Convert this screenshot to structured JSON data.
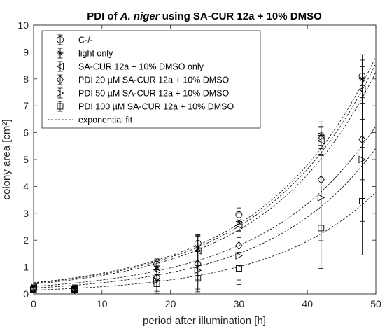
{
  "chart_data": {
    "type": "scatter",
    "title": {
      "prefix": "PDI of ",
      "italic": "A. niger",
      "suffix": " using SA-CUR 12a + 10% DMSO"
    },
    "xlabel": "period after illumination [h]",
    "ylabel": "colony area [cm²]",
    "xlim": [
      0,
      50
    ],
    "ylim": [
      0,
      10
    ],
    "xticks": [
      0,
      10,
      20,
      30,
      40,
      50
    ],
    "yticks": [
      0,
      1,
      2,
      3,
      4,
      5,
      6,
      7,
      8,
      9,
      10
    ],
    "grid": false,
    "legend_position": "top-left",
    "fit_label": "exponential fit",
    "series": [
      {
        "name": "C-/-",
        "marker": "circle",
        "x": [
          0,
          6,
          18,
          24,
          30,
          42,
          48
        ],
        "y": [
          0.22,
          0.2,
          1.1,
          1.88,
          2.95,
          5.88,
          8.1
        ],
        "err": [
          0.12,
          0.1,
          0.2,
          0.3,
          0.25,
          0.35,
          0.35
        ],
        "fit": {
          "a": 0.42,
          "b": 0.0609
        }
      },
      {
        "name": "light only",
        "marker": "asterisk",
        "x": [
          0,
          6,
          18,
          24,
          30,
          42,
          48
        ],
        "y": [
          0.28,
          0.18,
          1.0,
          1.7,
          2.7,
          5.9,
          8.0
        ],
        "err": [
          0.12,
          0.1,
          0.3,
          0.5,
          0.35,
          0.5,
          0.9
        ],
        "fit": {
          "a": 0.4,
          "b": 0.0613
        }
      },
      {
        "name": "SA-CUR 12a + 10% DMSO only",
        "marker": "triangle-left",
        "x": [
          0,
          6,
          18,
          24,
          30,
          42,
          48
        ],
        "y": [
          0.25,
          0.22,
          0.9,
          1.6,
          2.55,
          5.7,
          7.6
        ],
        "err": [
          0.15,
          0.12,
          0.4,
          0.55,
          0.45,
          0.5,
          1.1
        ],
        "fit": {
          "a": 0.37,
          "b": 0.0621
        }
      },
      {
        "name": "PDI 20 µM SA-CUR 12a + 10% DMSO",
        "marker": "diamond",
        "x": [
          0,
          6,
          18,
          24,
          30,
          42,
          48
        ],
        "y": [
          0.2,
          0.16,
          0.62,
          1.12,
          1.8,
          4.25,
          5.75
        ],
        "err": [
          0.12,
          0.1,
          0.4,
          0.6,
          0.8,
          0.9,
          1.5
        ],
        "fit": {
          "a": 0.28,
          "b": 0.0621
        }
      },
      {
        "name": "PDI 50 µM SA-CUR 12a + 10% DMSO",
        "marker": "triangle-right",
        "x": [
          0,
          6,
          18,
          24,
          30,
          42,
          48
        ],
        "y": [
          0.18,
          0.17,
          0.5,
          0.88,
          1.42,
          3.58,
          5.0
        ],
        "err": [
          0.12,
          0.1,
          0.4,
          0.7,
          0.9,
          1.6,
          2.3
        ],
        "fit": {
          "a": 0.22,
          "b": 0.0641
        }
      },
      {
        "name": "PDI 100 µM SA-CUR 12a + 10% DMSO",
        "marker": "square",
        "x": [
          0,
          6,
          18,
          24,
          30,
          42,
          48
        ],
        "y": [
          0.16,
          0.15,
          0.38,
          0.58,
          0.95,
          2.45,
          3.45
        ],
        "err": [
          0.12,
          0.1,
          0.35,
          0.5,
          0.6,
          1.5,
          2.0
        ],
        "fit": {
          "a": 0.14,
          "b": 0.066
        }
      }
    ]
  }
}
